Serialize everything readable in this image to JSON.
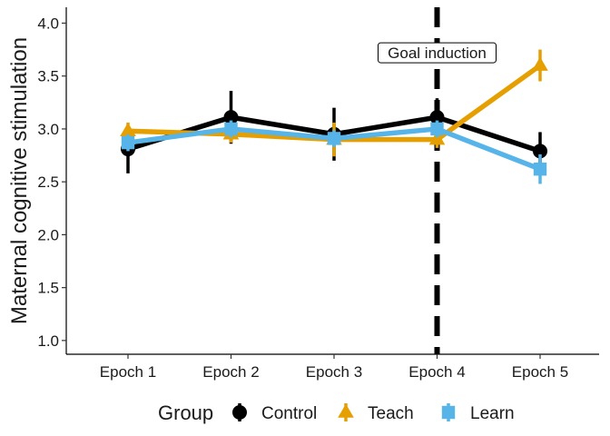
{
  "chart_data": {
    "type": "line",
    "title": "",
    "xlabel": "",
    "ylabel": "Maternal cognitive stimulation",
    "categories": [
      "Epoch 1",
      "Epoch 2",
      "Epoch 3",
      "Epoch 4",
      "Epoch 5"
    ],
    "ylim": [
      0.87,
      4.15
    ],
    "yticks": [
      1.0,
      1.5,
      2.0,
      2.5,
      3.0,
      3.5,
      4.0
    ],
    "grid": false,
    "legend": {
      "title": "Group",
      "placement": "bottom"
    },
    "annotation": {
      "text": "Goal induction",
      "at_category_index": 3,
      "y": 3.72,
      "line_style": "dashed"
    },
    "series": [
      {
        "name": "Control",
        "color": "#000000",
        "marker": "circle",
        "values": [
          2.81,
          3.11,
          2.95,
          3.11,
          2.79
        ],
        "lower": [
          2.58,
          2.86,
          2.7,
          2.93,
          2.61
        ],
        "upper": [
          3.02,
          3.36,
          3.2,
          3.29,
          2.97
        ]
      },
      {
        "name": "Teach",
        "color": "#E69F00",
        "marker": "triangle",
        "values": [
          2.98,
          2.95,
          2.9,
          2.9,
          3.6
        ],
        "lower": [
          2.9,
          2.87,
          2.74,
          2.82,
          3.45
        ],
        "upper": [
          3.06,
          3.03,
          3.06,
          2.98,
          3.75
        ]
      },
      {
        "name": "Learn",
        "color": "#56B4E9",
        "marker": "square",
        "values": [
          2.87,
          3.0,
          2.91,
          3.0,
          2.62
        ],
        "lower": [
          2.79,
          2.92,
          2.83,
          2.92,
          2.48
        ],
        "upper": [
          2.95,
          3.08,
          2.99,
          3.08,
          2.76
        ]
      }
    ]
  }
}
